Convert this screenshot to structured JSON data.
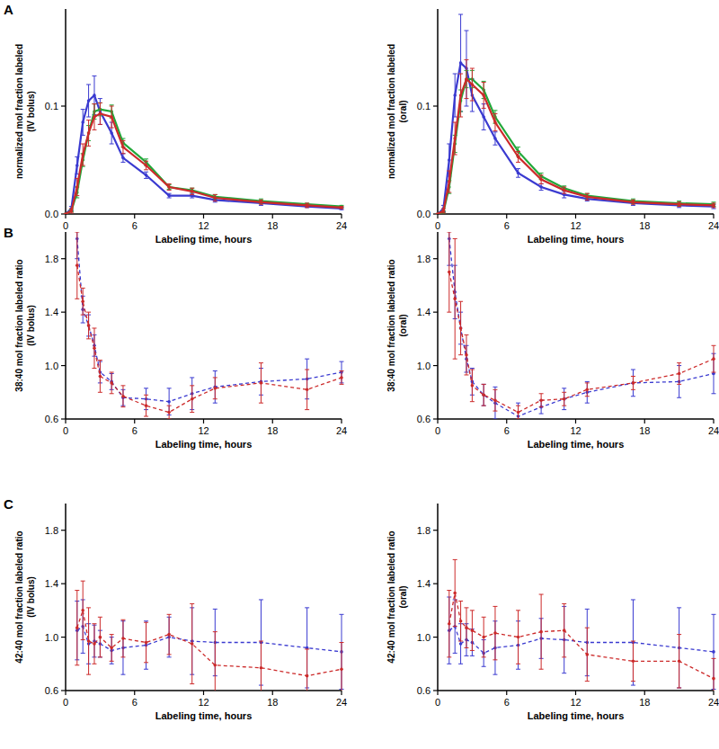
{
  "chart_data": [
    {
      "type": "line",
      "title": "A",
      "line_style": "solid",
      "marker": "circle",
      "xlabel": "Labeling time, hours",
      "ylabel": [
        "normalized mol fraction labeled",
        "(IV bolus)"
      ],
      "xlim": [
        0,
        24
      ],
      "xticks": [
        0,
        6,
        12,
        18,
        24
      ],
      "ylim": [
        0,
        0.19
      ],
      "yticks": [
        {
          "value": 0,
          "label": "0.0"
        },
        0.1
      ],
      "x": [
        0,
        0.5,
        1,
        1.5,
        2,
        2.5,
        3,
        4,
        5,
        7,
        9,
        11,
        13,
        17,
        21,
        24
      ],
      "series": [
        {
          "color": "#3a3ad0",
          "values": [
            0,
            0.005,
            0.045,
            0.085,
            0.105,
            0.11,
            0.095,
            0.075,
            0.052,
            0.036,
            0.017,
            0.017,
            0.013,
            0.01,
            0.007,
            0.005
          ],
          "errors": [
            0,
            0.002,
            0.008,
            0.012,
            0.015,
            0.018,
            0.012,
            0.01,
            0.004,
            0.003,
            0.002,
            0.002,
            0.002,
            0.002,
            0.001,
            0.001
          ]
        },
        {
          "color": "#22a83a",
          "values": [
            0,
            0.003,
            0.02,
            0.05,
            0.075,
            0.095,
            0.097,
            0.095,
            0.066,
            0.048,
            0.025,
            0.022,
            0.016,
            0.012,
            0.009,
            0.007
          ],
          "errors": [
            0,
            0.001,
            0.005,
            0.006,
            0.007,
            0.007,
            0.006,
            0.006,
            0.004,
            0.003,
            0.002,
            0.002,
            0.002,
            0.002,
            0.001,
            0.001
          ]
        },
        {
          "color": "#cc2a2a",
          "values": [
            0,
            0.003,
            0.025,
            0.055,
            0.075,
            0.09,
            0.093,
            0.09,
            0.062,
            0.045,
            0.025,
            0.021,
            0.015,
            0.011,
            0.008,
            0.006
          ],
          "errors": [
            0,
            0.002,
            0.008,
            0.01,
            0.012,
            0.012,
            0.01,
            0.01,
            0.006,
            0.004,
            0.003,
            0.003,
            0.003,
            0.002,
            0.002,
            0.001
          ]
        }
      ]
    },
    {
      "type": "line",
      "line_style": "solid",
      "marker": "circle",
      "xlabel": "Labeling time, hours",
      "ylabel": [
        "normalized mol fraction labeled",
        "(oral)"
      ],
      "xlim": [
        0,
        24
      ],
      "xticks": [
        0,
        6,
        12,
        18,
        24
      ],
      "ylim": [
        0,
        0.19
      ],
      "yticks": [
        {
          "value": 0,
          "label": "0.0"
        },
        0.1
      ],
      "x": [
        0,
        0.5,
        1,
        1.5,
        2,
        2.5,
        3,
        4,
        5,
        7,
        9,
        11,
        13,
        17,
        21,
        24
      ],
      "series": [
        {
          "color": "#3a3ad0",
          "values": [
            0,
            0.005,
            0.05,
            0.11,
            0.14,
            0.135,
            0.11,
            0.09,
            0.07,
            0.038,
            0.025,
            0.018,
            0.014,
            0.01,
            0.008,
            0.007
          ],
          "errors": [
            0,
            0.003,
            0.015,
            0.02,
            0.045,
            0.035,
            0.015,
            0.012,
            0.006,
            0.004,
            0.003,
            0.003,
            0.002,
            0.002,
            0.002,
            0.002
          ]
        },
        {
          "color": "#22a83a",
          "values": [
            0,
            0.002,
            0.025,
            0.065,
            0.105,
            0.125,
            0.125,
            0.115,
            0.09,
            0.058,
            0.035,
            0.024,
            0.017,
            0.012,
            0.01,
            0.009
          ],
          "errors": [
            0,
            0.001,
            0.006,
            0.008,
            0.01,
            0.008,
            0.008,
            0.008,
            0.006,
            0.004,
            0.003,
            0.002,
            0.002,
            0.002,
            0.002,
            0.002
          ]
        },
        {
          "color": "#cc2a2a",
          "values": [
            0,
            0.003,
            0.03,
            0.07,
            0.11,
            0.125,
            0.12,
            0.11,
            0.085,
            0.053,
            0.032,
            0.022,
            0.016,
            0.011,
            0.009,
            0.008
          ],
          "errors": [
            0,
            0.002,
            0.01,
            0.015,
            0.02,
            0.018,
            0.015,
            0.012,
            0.008,
            0.005,
            0.004,
            0.003,
            0.003,
            0.002,
            0.002,
            0.002
          ]
        }
      ]
    },
    {
      "type": "line",
      "title": "B",
      "line_style": "dashed",
      "marker": "circle",
      "xlabel": "Labeling time, hours",
      "ylabel": [
        "38:40 mol fraction labeled ratio",
        "(IV bolus)"
      ],
      "xlim": [
        0,
        24
      ],
      "xticks": [
        0,
        6,
        12,
        18,
        24
      ],
      "ylim": [
        0.6,
        2.0
      ],
      "yticks": [
        0.6,
        {
          "value": 1,
          "label": "1.0"
        },
        1.4,
        1.8
      ],
      "x": [
        1,
        1.5,
        2,
        2.5,
        3,
        4,
        5,
        7,
        9,
        11,
        13,
        17,
        21,
        24
      ],
      "series": [
        {
          "color": "#3a3ad0",
          "values": [
            1.95,
            1.42,
            1.3,
            1.15,
            0.95,
            0.88,
            0.76,
            0.75,
            0.73,
            0.79,
            0.84,
            0.88,
            0.9,
            0.95
          ],
          "errors": [
            0.15,
            0.1,
            0.08,
            0.08,
            0.08,
            0.06,
            0.06,
            0.08,
            0.1,
            0.12,
            0.12,
            0.1,
            0.15,
            0.08
          ]
        },
        {
          "color": "#cc2a2a",
          "values": [
            1.75,
            1.48,
            1.3,
            1.13,
            0.92,
            0.87,
            0.77,
            0.7,
            0.65,
            0.75,
            0.83,
            0.87,
            0.82,
            0.91
          ],
          "errors": [
            0.25,
            0.1,
            0.1,
            0.15,
            0.12,
            0.08,
            0.08,
            0.08,
            0.05,
            0.1,
            0.08,
            0.15,
            0.15,
            0.05
          ]
        }
      ]
    },
    {
      "type": "line",
      "line_style": "dashed",
      "marker": "circle",
      "xlabel": "Labeling time, hours",
      "ylabel": [
        "38:40 mol fraction labeled ratio",
        "(oral)"
      ],
      "xlim": [
        0,
        24
      ],
      "xticks": [
        0,
        6,
        12,
        18,
        24
      ],
      "ylim": [
        0.6,
        2.0
      ],
      "yticks": [
        0.6,
        {
          "value": 1,
          "label": "1.0"
        },
        1.4,
        1.8
      ],
      "x": [
        1,
        1.5,
        2,
        2.5,
        3,
        4,
        5,
        7,
        9,
        11,
        13,
        17,
        21,
        24
      ],
      "series": [
        {
          "color": "#3a3ad0",
          "values": [
            1.95,
            1.55,
            1.28,
            1.05,
            0.88,
            0.78,
            0.72,
            0.62,
            0.69,
            0.75,
            0.8,
            0.87,
            0.88,
            0.94
          ],
          "errors": [
            0.2,
            0.2,
            0.12,
            0.1,
            0.1,
            0.08,
            0.12,
            0.1,
            0.05,
            0.08,
            0.08,
            0.1,
            0.12,
            0.15
          ]
        },
        {
          "color": "#cc2a2a",
          "values": [
            1.7,
            1.5,
            1.28,
            1.08,
            0.85,
            0.78,
            0.74,
            0.65,
            0.74,
            0.75,
            0.82,
            0.87,
            0.94,
            1.05
          ],
          "errors": [
            0.3,
            0.45,
            0.2,
            0.15,
            0.12,
            0.08,
            0.08,
            0.05,
            0.05,
            0.05,
            0.05,
            0.05,
            0.08,
            0.1
          ]
        }
      ]
    },
    {
      "type": "line",
      "title": "C",
      "line_style": "dashed",
      "marker": "circle",
      "xlabel": "Labeling time, hours",
      "ylabel": [
        "42:40 mol fraction labeled ratio",
        "(IV bolus)"
      ],
      "xlim": [
        0,
        24
      ],
      "xticks": [
        0,
        6,
        12,
        18,
        24
      ],
      "ylim": [
        0.6,
        2.0
      ],
      "yticks": [
        0.6,
        {
          "value": 1,
          "label": "1.0"
        },
        1.4,
        1.8
      ],
      "x": [
        1,
        1.5,
        2,
        2.5,
        3,
        4,
        5,
        7,
        9,
        11,
        13,
        17,
        21,
        24
      ],
      "series": [
        {
          "color": "#3a3ad0",
          "values": [
            1.05,
            1.08,
            0.95,
            0.97,
            0.95,
            0.9,
            0.92,
            0.94,
            1.0,
            0.97,
            0.96,
            0.96,
            0.92,
            0.89
          ],
          "errors": [
            0.22,
            0.2,
            0.15,
            0.12,
            0.1,
            0.1,
            0.2,
            0.18,
            0.15,
            0.25,
            0.25,
            0.32,
            0.3,
            0.28
          ]
        },
        {
          "color": "#cc2a2a",
          "values": [
            1.07,
            1.2,
            0.97,
            0.95,
            1.0,
            0.92,
            0.99,
            0.96,
            1.02,
            0.95,
            0.79,
            0.77,
            0.71,
            0.76
          ],
          "errors": [
            0.28,
            0.22,
            0.25,
            0.15,
            0.15,
            0.1,
            0.14,
            0.15,
            0.15,
            0.3,
            0.25,
            0.2,
            0.2,
            0.2
          ]
        }
      ]
    },
    {
      "type": "line",
      "line_style": "dashed",
      "marker": "circle",
      "xlabel": "Labeling time, hours",
      "ylabel": [
        "42:40 mol fraction labeled ratio",
        "(oral)"
      ],
      "xlim": [
        0,
        24
      ],
      "xticks": [
        0,
        6,
        12,
        18,
        24
      ],
      "ylim": [
        0.6,
        2.0
      ],
      "yticks": [
        0.6,
        {
          "value": 1,
          "label": "1.0"
        },
        1.4,
        1.8
      ],
      "x": [
        1,
        1.5,
        2,
        2.5,
        3,
        4,
        5,
        7,
        9,
        11,
        13,
        17,
        21,
        24
      ],
      "series": [
        {
          "color": "#3a3ad0",
          "values": [
            1.05,
            1.08,
            0.95,
            0.98,
            0.96,
            0.88,
            0.92,
            0.94,
            0.99,
            0.98,
            0.96,
            0.96,
            0.92,
            0.89
          ],
          "errors": [
            0.25,
            0.2,
            0.15,
            0.12,
            0.1,
            0.1,
            0.2,
            0.18,
            0.15,
            0.25,
            0.25,
            0.32,
            0.3,
            0.28
          ]
        },
        {
          "color": "#cc2a2a",
          "values": [
            1.1,
            1.33,
            1.12,
            1.07,
            1.05,
            1.0,
            1.03,
            1.0,
            1.04,
            1.05,
            0.87,
            0.82,
            0.82,
            0.69
          ],
          "errors": [
            0.25,
            0.25,
            0.15,
            0.15,
            0.15,
            0.15,
            0.2,
            0.2,
            0.28,
            0.2,
            0.2,
            0.15,
            0.2,
            0.15
          ]
        }
      ]
    }
  ]
}
